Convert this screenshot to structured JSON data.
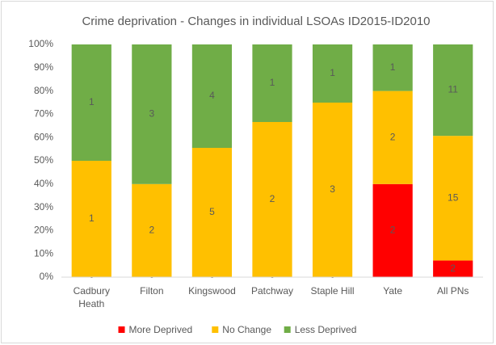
{
  "chart_data": {
    "type": "bar",
    "stacking": "percent",
    "title": "Crime deprivation - Changes in individual LSOAs ID2015-ID2010",
    "categories": [
      "Cadbury Heath",
      "Filton",
      "Kingswood",
      "Patchway",
      "Staple Hill",
      "Yate",
      "All PNs"
    ],
    "series": [
      {
        "name": "More Deprived",
        "color": "#ff0000",
        "values": [
          0,
          0,
          0,
          0,
          0,
          2,
          2
        ]
      },
      {
        "name": "No Change",
        "color": "#ffc000",
        "values": [
          1,
          2,
          5,
          2,
          3,
          2,
          15
        ]
      },
      {
        "name": "Less Deprived",
        "color": "#70ad47",
        "values": [
          1,
          3,
          4,
          1,
          1,
          1,
          11
        ]
      }
    ],
    "ylim": [
      0,
      100
    ],
    "yticks": [
      {
        "value": 0,
        "label": "0%"
      },
      {
        "value": 10,
        "label": "10%"
      },
      {
        "value": 20,
        "label": "20%"
      },
      {
        "value": 30,
        "label": "30%"
      },
      {
        "value": 40,
        "label": "40%"
      },
      {
        "value": 50,
        "label": "50%"
      },
      {
        "value": 60,
        "label": "60%"
      },
      {
        "value": 70,
        "label": "70%"
      },
      {
        "value": 80,
        "label": "80%"
      },
      {
        "value": 90,
        "label": "90%"
      },
      {
        "value": 100,
        "label": "100%"
      }
    ],
    "grid": false,
    "legend": "bottom"
  }
}
